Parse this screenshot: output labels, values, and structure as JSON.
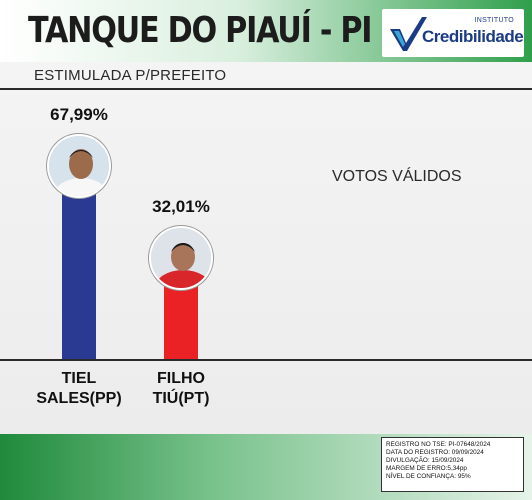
{
  "header": {
    "title": "TANQUE DO PIAUÍ - PI",
    "logo_small": "INSTITUTO",
    "logo_big": "Credibilidade"
  },
  "subtitle": "ESTIMULADA P/PREFEITO",
  "votes_label": "VOTOS VÁLIDOS",
  "chart_data": {
    "type": "bar",
    "categories": [
      "TIEL SALES(PP)",
      "FILHO TIÚ(PT)"
    ],
    "values": [
      67.99,
      32.01
    ],
    "value_labels": [
      "67,99%",
      "32,01%"
    ],
    "colors": [
      "#2a3a93",
      "#ea2226"
    ],
    "ylim": [
      0,
      100
    ],
    "grid": false,
    "legend": "none"
  },
  "candidates": [
    {
      "name_line1": "TIEL",
      "name_line2": "SALES(PP)",
      "pct_label": "67,99%"
    },
    {
      "name_line1": "FILHO",
      "name_line2": "TIÚ(PT)",
      "pct_label": "32,01%"
    }
  ],
  "registration": {
    "line1": "REGISTRO NO TSE: PI-07648/2024",
    "line2": "DATA DO REGISTRO: 09/09/2024",
    "line3": "DIVULGAÇÃO: 15/09/2024",
    "line4": "MARGEM DE ERRO:5,34pp",
    "line5": "NÍVEL DE CONFIANÇA: 95%"
  }
}
